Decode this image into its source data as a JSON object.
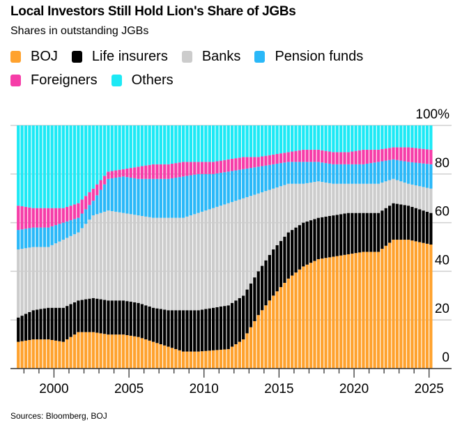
{
  "header": {
    "title": "Local Investors Still Hold Lion's Share of JGBs",
    "subtitle": "Shares in outstanding JGBs"
  },
  "legend": [
    {
      "label": "BOJ",
      "color": "#ffa22e"
    },
    {
      "label": "Life insurers",
      "color": "#000000"
    },
    {
      "label": "Banks",
      "color": "#cccccc"
    },
    {
      "label": "Pension funds",
      "color": "#2ab8f8"
    },
    {
      "label": "Foreigners",
      "color": "#f63da8"
    },
    {
      "label": "Others",
      "color": "#1de9f5"
    }
  ],
  "footer": {
    "source": "Sources: Bloomberg, BOJ"
  },
  "chart_data": {
    "type": "bar",
    "stacked": true,
    "title": "Local Investors Still Hold Lion's Share of JGBs",
    "subtitle": "Shares in outstanding JGBs",
    "xlabel": "",
    "ylabel": "",
    "ylim": [
      0,
      100
    ],
    "y_ticks": [
      "0",
      "20",
      "40",
      "60",
      "80",
      "100%"
    ],
    "x_ticks": [
      "2000",
      "2005",
      "2010",
      "2015",
      "2020",
      "2025"
    ],
    "x_range": [
      1997.6,
      2027.0
    ],
    "y_axis_position": "right",
    "grid": true,
    "legend_position": "top",
    "frequency": "quarterly",
    "start": 1998.0,
    "note": "values are cumulative tops (%) per series at yearly anchor points, estimated from gridlines; bars are quarterly between anchors",
    "anchors": {
      "x": [
        1998.0,
        1999.0,
        2000.0,
        2001.0,
        2002.0,
        2003.0,
        2004.0,
        2005.0,
        2006.0,
        2007.0,
        2008.0,
        2009.0,
        2010.0,
        2011.0,
        2012.0,
        2013.0,
        2014.0,
        2015.0,
        2016.0,
        2017.0,
        2018.0,
        2019.0,
        2020.0,
        2021.0,
        2022.0,
        2023.0,
        2024.0,
        2025.5
      ],
      "series": [
        {
          "name": "BOJ",
          "values": [
            11,
            12,
            12,
            11,
            15,
            15,
            14,
            14,
            13,
            11,
            9,
            7,
            7,
            7.5,
            8,
            12,
            22,
            30,
            37,
            42,
            45,
            46,
            47,
            48,
            48,
            53,
            53,
            51
          ]
        },
        {
          "name": "Life insurers",
          "values": [
            10,
            12,
            13,
            14,
            13,
            14,
            14,
            14,
            14,
            14,
            15,
            17,
            17,
            17.5,
            18,
            18,
            18,
            19,
            19,
            18,
            17,
            17,
            17,
            16,
            16,
            15,
            14,
            13
          ]
        },
        {
          "name": "Banks",
          "values": [
            28,
            26,
            25,
            28,
            28,
            34,
            37,
            36,
            36,
            37,
            38,
            38,
            40,
            41,
            42,
            40,
            32,
            25,
            20,
            16,
            15,
            13,
            12,
            12,
            12,
            10,
            9,
            10
          ]
        },
        {
          "name": "Pension funds",
          "values": [
            8,
            8,
            8,
            7,
            6,
            6,
            13,
            15,
            15,
            16,
            16,
            17,
            16,
            14,
            13,
            12,
            11,
            10,
            9,
            9,
            8,
            8,
            8,
            8,
            9,
            8,
            9,
            10
          ]
        },
        {
          "name": "Foreigners",
          "values": [
            10,
            8,
            8,
            6,
            6,
            5,
            3,
            3,
            5,
            6,
            6,
            6,
            5,
            5,
            5,
            5,
            4,
            4,
            4,
            5,
            5,
            5,
            5,
            6,
            5,
            5,
            6,
            6
          ]
        },
        {
          "name": "Others",
          "values": [
            33,
            34,
            34,
            34,
            32,
            26,
            19,
            18,
            17,
            16,
            16,
            15,
            15,
            15,
            14,
            13,
            13,
            12,
            11,
            10,
            10,
            11,
            11,
            10,
            10,
            9,
            9,
            10
          ]
        }
      ]
    }
  }
}
